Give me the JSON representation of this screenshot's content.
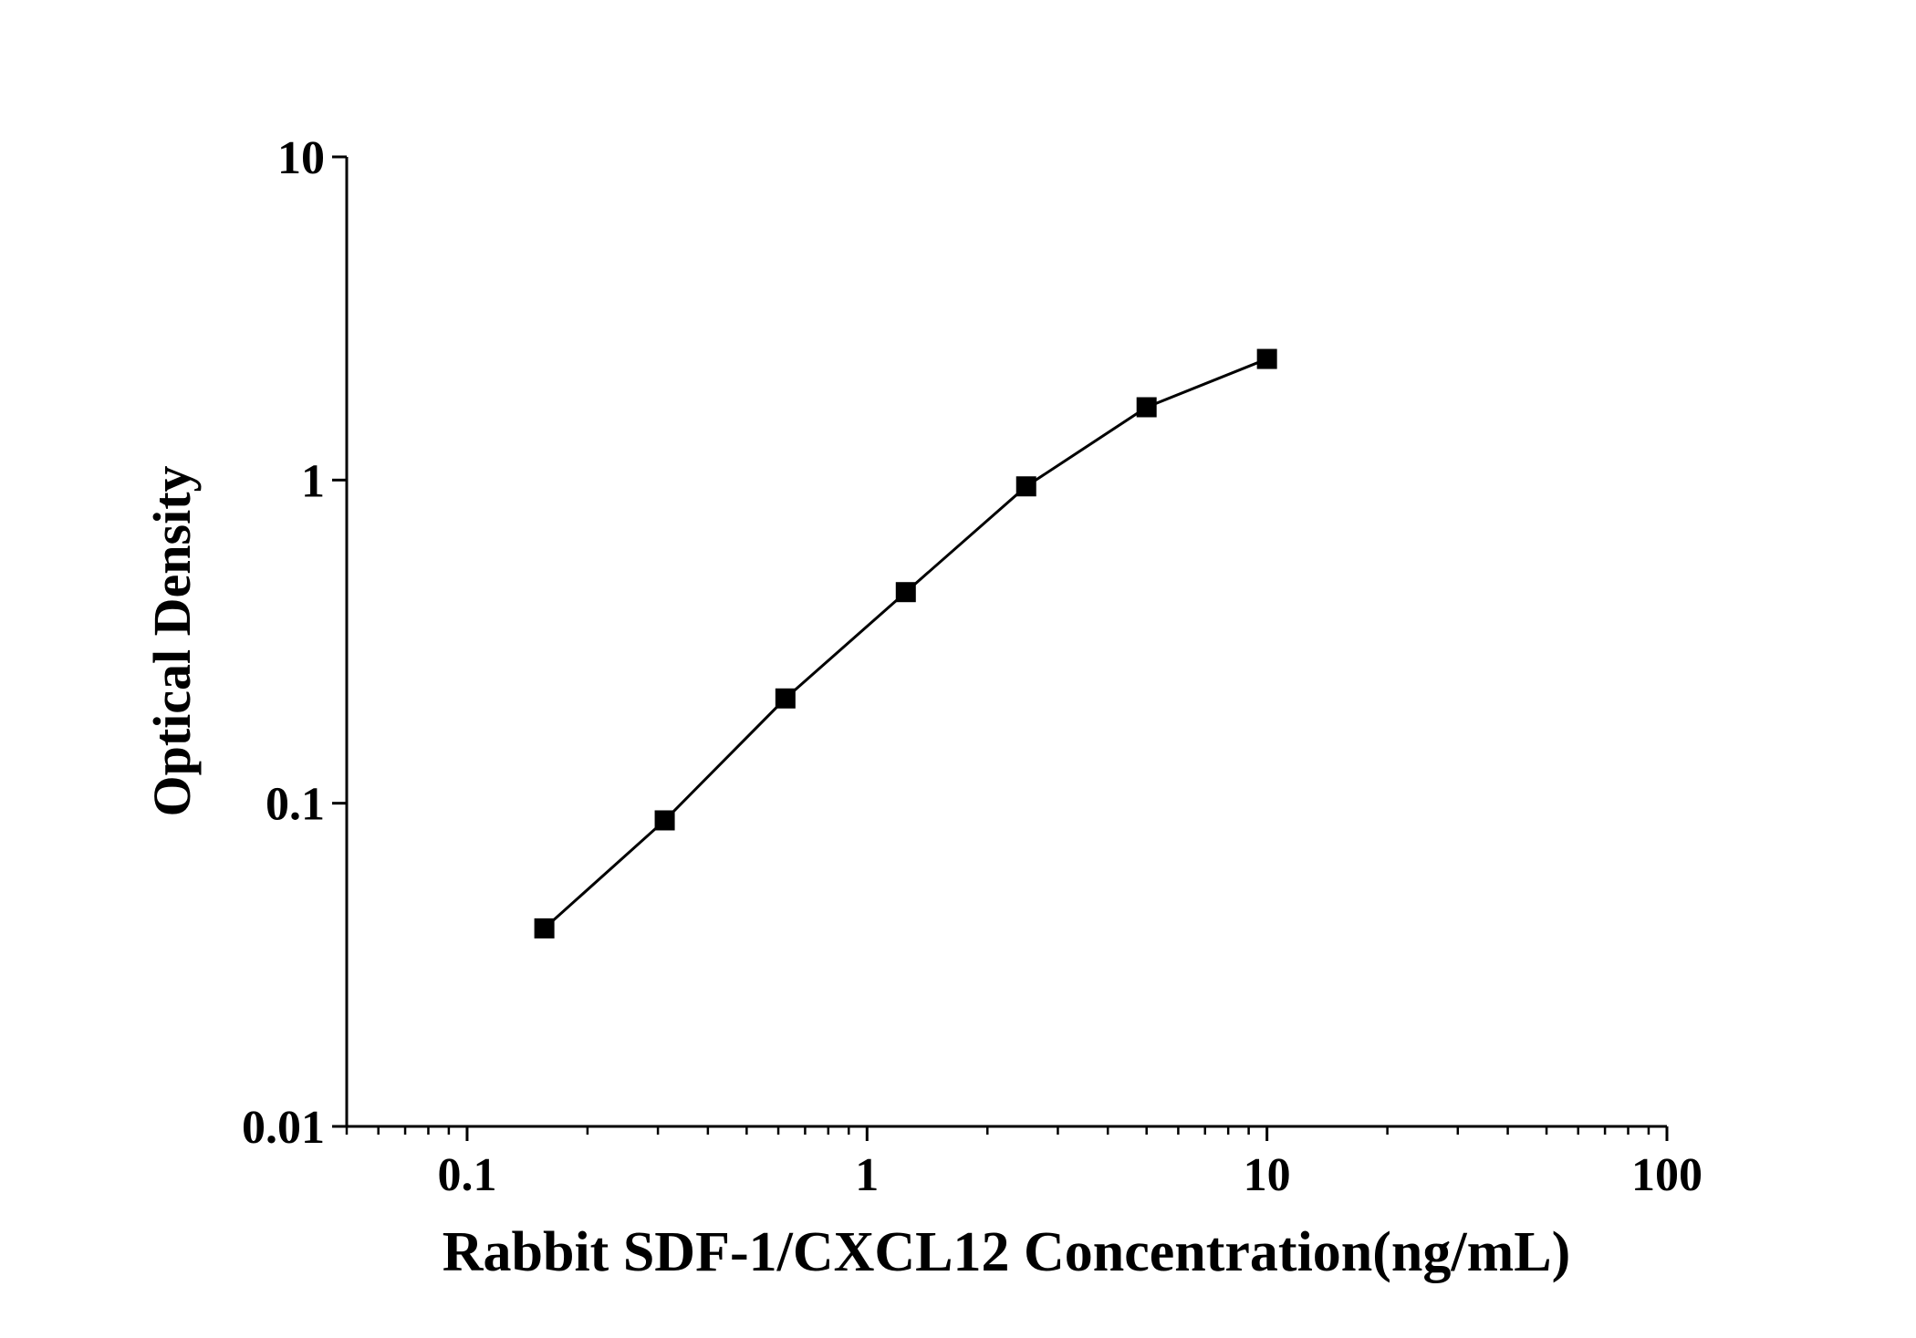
{
  "chart_data": {
    "type": "line",
    "x_label": "Rabbit SDF-1/CXCL12 Concentration(ng/mL)",
    "y_label": "Optical Density",
    "x": [
      0.156,
      0.312,
      0.625,
      1.25,
      2.5,
      5,
      10
    ],
    "series": [
      {
        "color": "#000000",
        "marker": "square",
        "values": [
          0.041,
          0.0885,
          0.211,
          0.45,
          0.956,
          1.68,
          2.37
        ]
      }
    ],
    "xlim": [
      0.05,
      100
    ],
    "ylim": [
      0.01,
      10
    ],
    "xticks": [
      0.1,
      1,
      10,
      100
    ],
    "yticks": [
      0.01,
      0.1,
      1,
      10
    ],
    "xscale": "log",
    "yscale": "log",
    "grid": false
  }
}
